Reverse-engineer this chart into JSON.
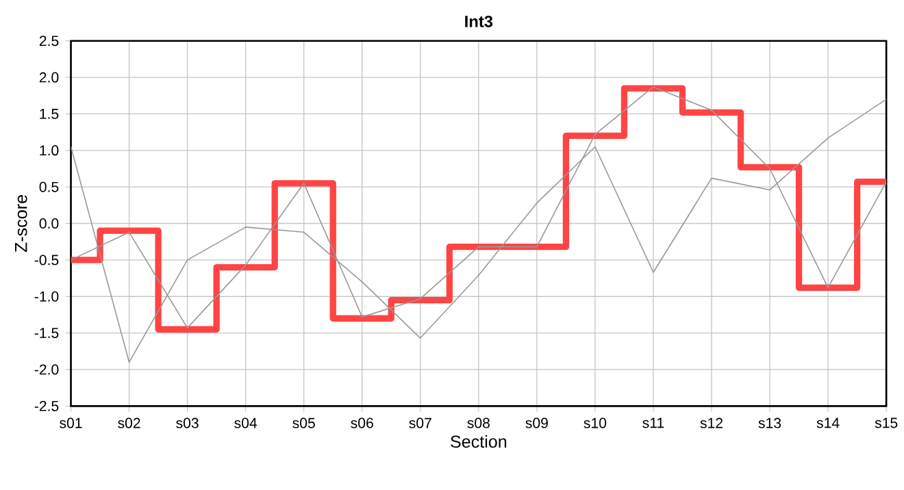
{
  "chart_data": {
    "type": "line",
    "title": "Int3",
    "xlabel": "Section",
    "ylabel": "Z-score",
    "categories": [
      "s01",
      "s02",
      "s03",
      "s04",
      "s05",
      "s06",
      "s07",
      "s08",
      "s09",
      "s10",
      "s11",
      "s12",
      "s13",
      "s14",
      "s15"
    ],
    "series": [
      {
        "type": "step",
        "color": "#ff4444",
        "values": [
          -0.5,
          -0.1,
          -1.45,
          -0.6,
          0.55,
          -1.3,
          -1.05,
          -0.32,
          -0.32,
          1.2,
          1.85,
          1.52,
          0.77,
          -0.88,
          0.57
        ]
      },
      {
        "color": "#999999",
        "values": [
          1.05,
          -1.9,
          -0.5,
          -0.05,
          -0.12,
          -0.8,
          -1.57,
          -0.71,
          0.28,
          1.05,
          -0.67,
          0.62,
          0.46,
          1.17,
          1.7
        ]
      },
      {
        "color": "#999999",
        "values": [
          -0.5,
          -0.12,
          -1.43,
          -0.57,
          0.55,
          -1.28,
          -1.03,
          -0.32,
          -0.32,
          1.22,
          1.87,
          1.55,
          0.75,
          -0.88,
          0.57
        ]
      }
    ],
    "ylim": [
      -2.5,
      2.5
    ],
    "yticks": [
      {
        "value": -2.5,
        "label": "-2.5"
      },
      {
        "value": -2.0,
        "label": "-2.0"
      },
      {
        "value": -1.5,
        "label": "-1.5"
      },
      {
        "value": -1.0,
        "label": "-1.0"
      },
      {
        "value": -0.5,
        "label": "-0.5"
      },
      {
        "value": 0.0,
        "label": "0.0"
      },
      {
        "value": 0.5,
        "label": "0.5"
      },
      {
        "value": 1.0,
        "label": "1.0"
      },
      {
        "value": 1.5,
        "label": "1.5"
      },
      {
        "value": 2.0,
        "label": "2.0"
      },
      {
        "value": 2.5,
        "label": "2.5"
      }
    ],
    "grid": true,
    "marker": "none",
    "line_style": "solid"
  }
}
